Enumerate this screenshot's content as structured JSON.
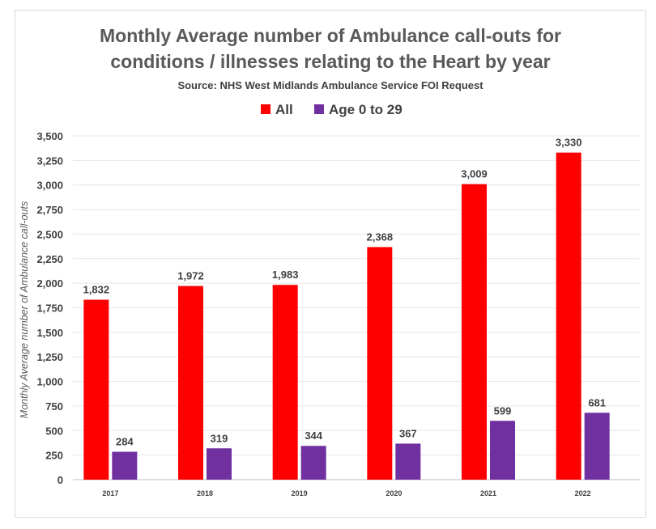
{
  "chart_data": {
    "type": "bar",
    "title_line1": "Monthly Average number of Ambulance call-outs for",
    "title_line2": "conditions / illnesses relating to the Heart by year",
    "subtitle": "Source: NHS West Midlands Ambulance Service FOI Request",
    "ylabel": "Monthly Average number of Ambulance call-outs",
    "xlabel": "",
    "categories": [
      "2017",
      "2018",
      "2019",
      "2020",
      "2021",
      "2022"
    ],
    "series": [
      {
        "name": "All",
        "color": "#ff0000",
        "values": [
          1832,
          1972,
          1983,
          2368,
          3009,
          3330
        ]
      },
      {
        "name": "Age 0 to 29",
        "color": "#7030a0",
        "values": [
          284,
          319,
          344,
          367,
          599,
          681
        ]
      }
    ],
    "data_labels": [
      [
        "1,832",
        "1,972",
        "1,983",
        "2,368",
        "3,009",
        "3,330"
      ],
      [
        "284",
        "319",
        "344",
        "367",
        "599",
        "681"
      ]
    ],
    "ylim": [
      0,
      3500
    ],
    "ytick_values": [
      0,
      250,
      500,
      750,
      1000,
      1250,
      1500,
      1750,
      2000,
      2250,
      2500,
      2750,
      3000,
      3250,
      3500
    ],
    "ytick_labels": [
      "0",
      "250",
      "500",
      "750",
      "1,000",
      "1,250",
      "1,500",
      "1,750",
      "2,000",
      "2,250",
      "2,500",
      "2,750",
      "3,000",
      "3,250",
      "3,500"
    ],
    "grid": true,
    "legend_position": "top"
  }
}
